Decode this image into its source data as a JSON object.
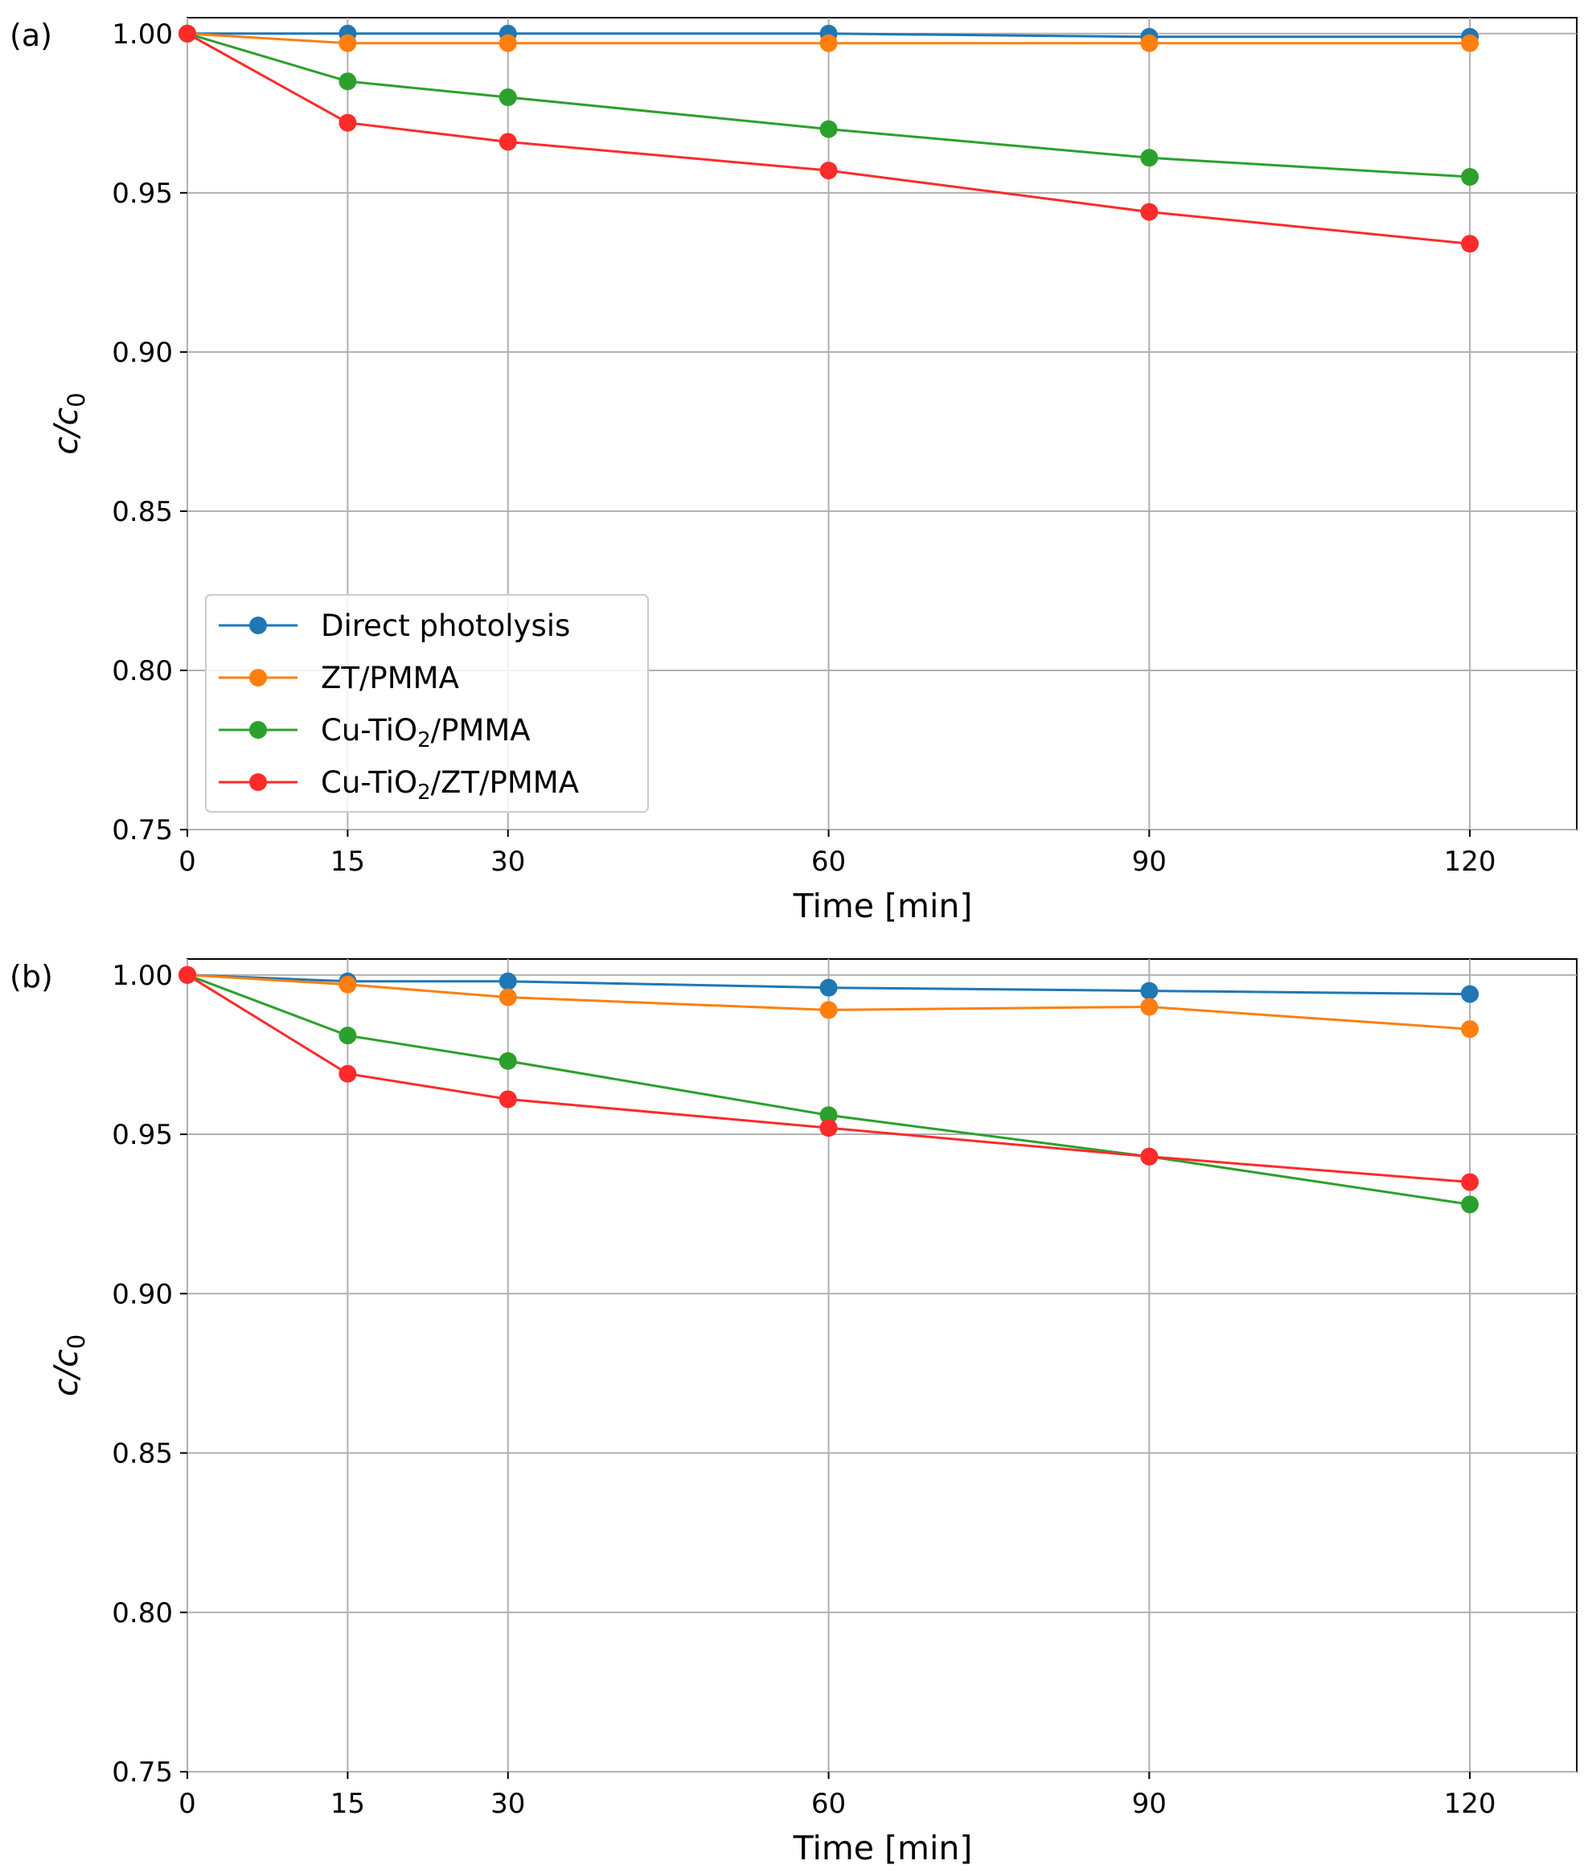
{
  "chart_data": [
    {
      "type": "line",
      "panel_label": "(a)",
      "xlabel": "Time [min]",
      "ylabel": {
        "main": "c/c",
        "sub": "0"
      },
      "x": [
        0,
        15,
        30,
        60,
        90,
        120
      ],
      "xticks": [
        "0",
        "15",
        "30",
        "60",
        "90",
        "120"
      ],
      "yticks": [
        {
          "value": 0.75,
          "label": "0.75"
        },
        {
          "value": 0.8,
          "label": "0.80"
        },
        {
          "value": 0.85,
          "label": "0.85"
        },
        {
          "value": 0.9,
          "label": "0.90"
        },
        {
          "value": 0.95,
          "label": "0.95"
        },
        {
          "value": 1.0,
          "label": "1.00"
        }
      ],
      "xlim": [
        0,
        130
      ],
      "ylim": [
        0.75,
        1.005
      ],
      "grid": true,
      "legend_position": "lower-left",
      "series": [
        {
          "name": "Direct photolysis",
          "color": "#1f77b4",
          "values": [
            1.0,
            1.0,
            1.0,
            1.0,
            0.999,
            0.999
          ]
        },
        {
          "name": "ZT/PMMA",
          "color": "#ff7f0e",
          "values": [
            1.0,
            0.997,
            0.997,
            0.997,
            0.997,
            0.997
          ]
        },
        {
          "name": "Cu-TiO2/PMMA",
          "color": "#2ca02c",
          "values": [
            1.0,
            0.985,
            0.98,
            0.97,
            0.961,
            0.955
          ]
        },
        {
          "name": "Cu-TiO2/ZT/PMMA",
          "color": "#ff2a2a",
          "values": [
            1.0,
            0.972,
            0.966,
            0.957,
            0.944,
            0.934
          ]
        }
      ],
      "legend": [
        {
          "text": "Direct photolysis"
        },
        {
          "text": "ZT/PMMA"
        },
        {
          "text": "Cu-TiO",
          "sub": "2",
          "tail": "/PMMA"
        },
        {
          "text": "Cu-TiO",
          "sub": "2",
          "tail": "/ZT/PMMA"
        }
      ]
    },
    {
      "type": "line",
      "panel_label": "(b)",
      "xlabel": "Time [min]",
      "ylabel": {
        "main": "c/c",
        "sub": "0"
      },
      "x": [
        0,
        15,
        30,
        60,
        90,
        120
      ],
      "xticks": [
        "0",
        "15",
        "30",
        "60",
        "90",
        "120"
      ],
      "yticks": [
        {
          "value": 0.75,
          "label": "0.75"
        },
        {
          "value": 0.8,
          "label": "0.80"
        },
        {
          "value": 0.85,
          "label": "0.85"
        },
        {
          "value": 0.9,
          "label": "0.90"
        },
        {
          "value": 0.95,
          "label": "0.95"
        },
        {
          "value": 1.0,
          "label": "1.00"
        }
      ],
      "xlim": [
        0,
        130
      ],
      "ylim": [
        0.75,
        1.005
      ],
      "grid": true,
      "series": [
        {
          "name": "Direct photolysis",
          "color": "#1f77b4",
          "values": [
            1.0,
            0.998,
            0.998,
            0.996,
            0.995,
            0.994
          ]
        },
        {
          "name": "ZT/PMMA",
          "color": "#ff7f0e",
          "values": [
            1.0,
            0.997,
            0.993,
            0.989,
            0.99,
            0.983
          ]
        },
        {
          "name": "Cu-TiO2/PMMA",
          "color": "#2ca02c",
          "values": [
            1.0,
            0.981,
            0.973,
            0.956,
            0.943,
            0.928
          ]
        },
        {
          "name": "Cu-TiO2/ZT/PMMA",
          "color": "#ff2a2a",
          "values": [
            1.0,
            0.969,
            0.961,
            0.952,
            0.943,
            0.935
          ]
        }
      ]
    }
  ]
}
